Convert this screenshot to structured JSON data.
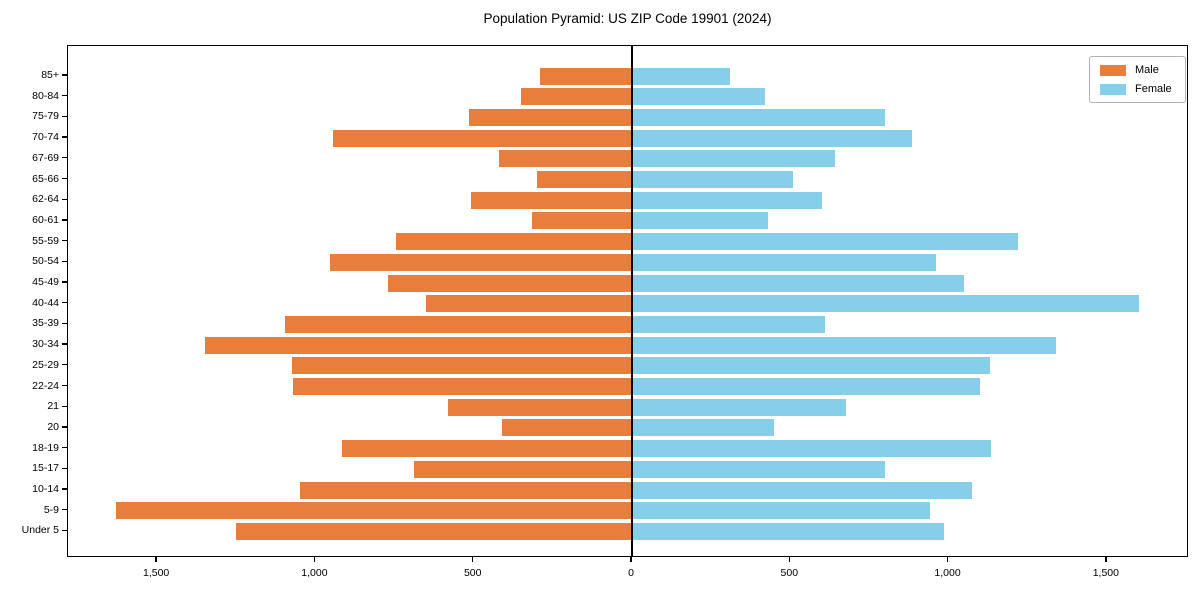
{
  "figure": {
    "title": "Population Pyramid: US ZIP Code 19901 (2024)"
  },
  "legend": {
    "items": [
      {
        "label": "Male",
        "color": "#E87D3C"
      },
      {
        "label": "Female",
        "color": "#87CEEB"
      }
    ]
  },
  "chart_data": {
    "type": "bar",
    "subtype": "population-pyramid",
    "title": "Population Pyramid: US ZIP Code 19901 (2024)",
    "categories_top_to_bottom": [
      "85+",
      "80-84",
      "75-79",
      "70-74",
      "67-69",
      "65-66",
      "62-64",
      "60-61",
      "55-59",
      "50-54",
      "45-49",
      "40-44",
      "35-39",
      "30-34",
      "25-29",
      "22-24",
      "21",
      "20",
      "18-19",
      "15-17",
      "10-14",
      "5-9",
      "Under 5"
    ],
    "series": [
      {
        "name": "Male",
        "side": "left",
        "color": "#E87D3C",
        "values": [
          290,
          350,
          515,
          945,
          420,
          300,
          510,
          315,
          745,
          955,
          770,
          650,
          1095,
          1350,
          1075,
          1070,
          580,
          410,
          915,
          690,
          1050,
          1630,
          1250
        ]
      },
      {
        "name": "Female",
        "side": "right",
        "color": "#87CEEB",
        "values": [
          310,
          420,
          800,
          885,
          640,
          510,
          600,
          430,
          1220,
          960,
          1050,
          1600,
          610,
          1340,
          1130,
          1100,
          675,
          450,
          1135,
          800,
          1075,
          940,
          985
        ]
      }
    ],
    "x_axis": {
      "tick_values": [
        -1500,
        -1000,
        -500,
        0,
        500,
        1000,
        1500
      ],
      "tick_labels": [
        "1,500",
        "1,000",
        "500",
        "0",
        "500",
        "1,000",
        "1,500"
      ]
    },
    "xlim": [
      -1780,
      1760
    ],
    "grid": false,
    "legend_position": "upper-right",
    "zero_line": true
  }
}
